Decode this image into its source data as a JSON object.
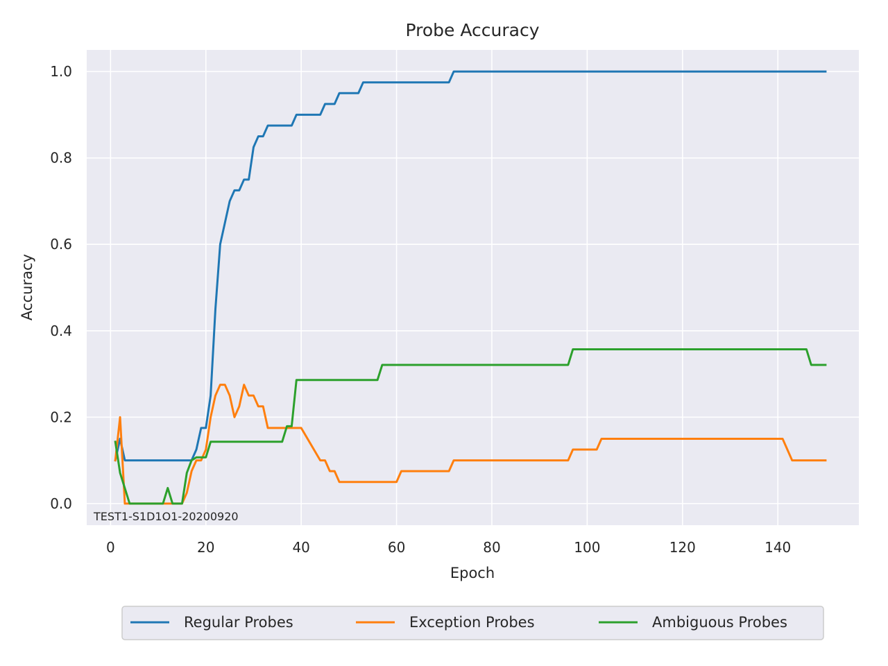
{
  "chart_data": {
    "type": "line",
    "title": "Probe Accuracy",
    "xlabel": "Epoch",
    "ylabel": "Accuracy",
    "xlim": [
      -5,
      157
    ],
    "ylim": [
      -0.05,
      1.05
    ],
    "xticks": [
      0,
      20,
      40,
      60,
      80,
      100,
      120,
      140
    ],
    "yticks": [
      0.0,
      0.2,
      0.4,
      0.6,
      0.8,
      1.0
    ],
    "grid": true,
    "legend_position": "bottom-center",
    "annotation": "TEST1-S1D1O1-20200920",
    "background": "#eaeaf2",
    "series": [
      {
        "name": "Regular Probes",
        "color": "#1f77b4",
        "points": [
          [
            1,
            0.1
          ],
          [
            2,
            0.15
          ],
          [
            3,
            0.1
          ],
          [
            16,
            0.1
          ],
          [
            17,
            0.1
          ],
          [
            18,
            0.125
          ],
          [
            19,
            0.175
          ],
          [
            20,
            0.175
          ],
          [
            21,
            0.25
          ],
          [
            22,
            0.45
          ],
          [
            23,
            0.6
          ],
          [
            24,
            0.65
          ],
          [
            25,
            0.7
          ],
          [
            26,
            0.725
          ],
          [
            27,
            0.725
          ],
          [
            28,
            0.75
          ],
          [
            29,
            0.75
          ],
          [
            30,
            0.825
          ],
          [
            31,
            0.85
          ],
          [
            32,
            0.85
          ],
          [
            33,
            0.875
          ],
          [
            38,
            0.875
          ],
          [
            39,
            0.9
          ],
          [
            44,
            0.9
          ],
          [
            45,
            0.925
          ],
          [
            47,
            0.925
          ],
          [
            48,
            0.95
          ],
          [
            52,
            0.95
          ],
          [
            53,
            0.975
          ],
          [
            71,
            0.975
          ],
          [
            72,
            1.0
          ],
          [
            150,
            1.0
          ]
        ]
      },
      {
        "name": "Exception Probes",
        "color": "#ff7f0e",
        "points": [
          [
            1,
            0.1
          ],
          [
            2,
            0.2
          ],
          [
            3,
            0.0
          ],
          [
            4,
            0.0
          ],
          [
            15,
            0.0
          ],
          [
            16,
            0.025
          ],
          [
            17,
            0.075
          ],
          [
            18,
            0.1
          ],
          [
            19,
            0.1
          ],
          [
            20,
            0.125
          ],
          [
            21,
            0.2
          ],
          [
            22,
            0.25
          ],
          [
            23,
            0.275
          ],
          [
            24,
            0.275
          ],
          [
            25,
            0.25
          ],
          [
            26,
            0.2
          ],
          [
            27,
            0.225
          ],
          [
            28,
            0.275
          ],
          [
            29,
            0.25
          ],
          [
            30,
            0.25
          ],
          [
            31,
            0.225
          ],
          [
            32,
            0.225
          ],
          [
            33,
            0.175
          ],
          [
            40,
            0.175
          ],
          [
            44,
            0.1
          ],
          [
            45,
            0.1
          ],
          [
            46,
            0.075
          ],
          [
            47,
            0.075
          ],
          [
            48,
            0.05
          ],
          [
            60,
            0.05
          ],
          [
            61,
            0.075
          ],
          [
            71,
            0.075
          ],
          [
            72,
            0.1
          ],
          [
            96,
            0.1
          ],
          [
            97,
            0.125
          ],
          [
            102,
            0.125
          ],
          [
            103,
            0.15
          ],
          [
            141,
            0.15
          ],
          [
            143,
            0.1
          ],
          [
            150,
            0.1
          ]
        ]
      },
      {
        "name": "Ambiguous Probes",
        "color": "#2ca02c",
        "points": [
          [
            1,
            0.143
          ],
          [
            2,
            0.071
          ],
          [
            4,
            0.0
          ],
          [
            11,
            0.0
          ],
          [
            12,
            0.036
          ],
          [
            13,
            0.0
          ],
          [
            15,
            0.0
          ],
          [
            16,
            0.071
          ],
          [
            17,
            0.1
          ],
          [
            18,
            0.107
          ],
          [
            20,
            0.107
          ],
          [
            21,
            0.143
          ],
          [
            36,
            0.143
          ],
          [
            37,
            0.179
          ],
          [
            38,
            0.179
          ],
          [
            39,
            0.286
          ],
          [
            56,
            0.286
          ],
          [
            57,
            0.321
          ],
          [
            96,
            0.321
          ],
          [
            97,
            0.357
          ],
          [
            146,
            0.357
          ],
          [
            147,
            0.321
          ],
          [
            150,
            0.321
          ]
        ]
      }
    ]
  }
}
